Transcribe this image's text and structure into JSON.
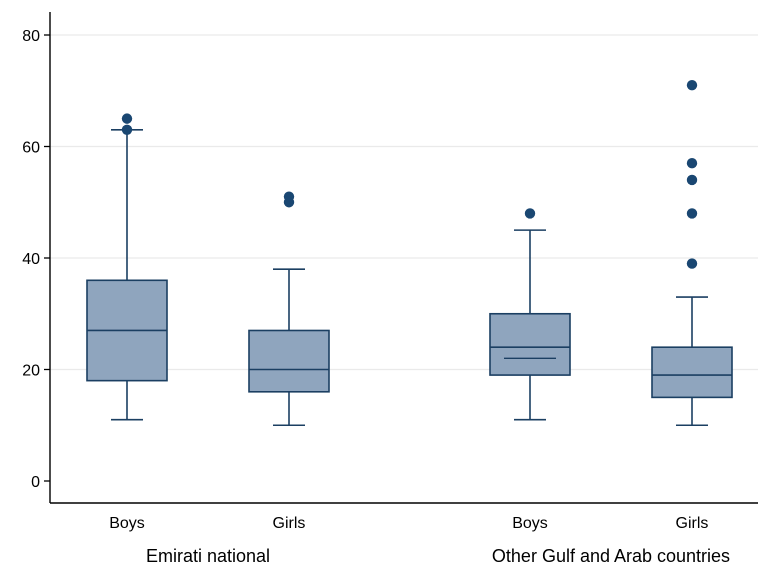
{
  "chart_data": {
    "type": "box",
    "title": "",
    "ylabel": "",
    "xlabel": "",
    "ylim": [
      -4,
      82
    ],
    "yticks": [
      0,
      20,
      40,
      60,
      80
    ],
    "ytick_labels": [
      "0",
      "20",
      "40",
      "60",
      "80"
    ],
    "grid": true,
    "legend": "none",
    "groups": [
      {
        "label": "Emirati national",
        "boxes": [
          {
            "label": "Boys",
            "whisker_low": 11,
            "q1": 18,
            "median": 27,
            "q3": 36,
            "whisker_high": 63,
            "outliers": [
              63,
              65
            ]
          },
          {
            "label": "Girls",
            "whisker_low": 10,
            "q1": 16,
            "median": 20,
            "q3": 27,
            "whisker_high": 38,
            "outliers": [
              50,
              51
            ]
          }
        ]
      },
      {
        "label": "Other Gulf and Arab countries",
        "boxes": [
          {
            "label": "Boys",
            "whisker_low": 11,
            "q1": 19,
            "median": 24,
            "q3": 30,
            "whisker_high": 45,
            "outliers": [
              48
            ],
            "extra_line": 22
          },
          {
            "label": "Girls",
            "whisker_low": 10,
            "q1": 15,
            "median": 19,
            "q3": 24,
            "whisker_high": 33,
            "outliers": [
              39,
              48,
              54,
              57,
              71
            ]
          }
        ]
      }
    ],
    "colors": {
      "box_fill": "#8fa5be",
      "box_stroke": "#1b3f62",
      "marker": "#1a4772",
      "grid": "#eaeaea",
      "axis": "#000000"
    }
  }
}
